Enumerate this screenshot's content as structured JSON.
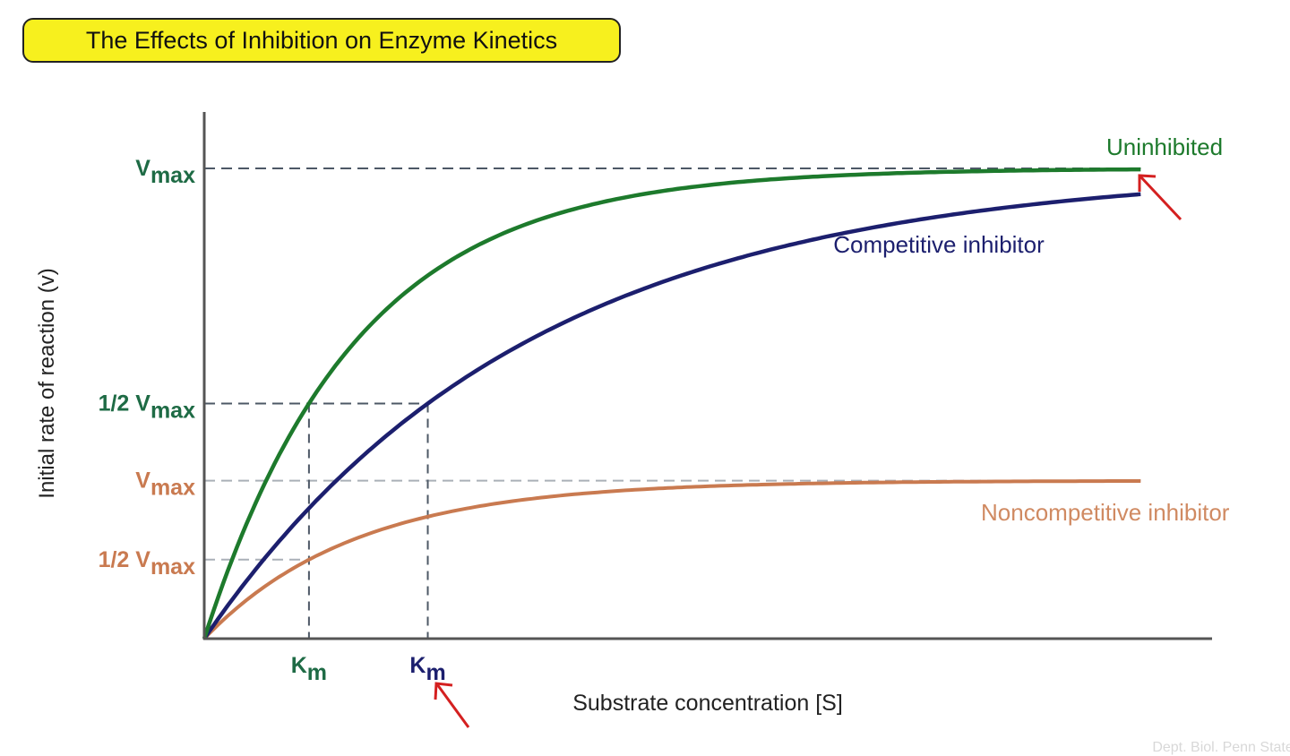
{
  "chart_data": {
    "type": "line",
    "title": "The Effects of Inhibition on Enzyme Kinetics",
    "xlabel": "Substrate concentration [S]",
    "ylabel": "Initial rate of reaction (v)",
    "xlim": [
      0,
      100
    ],
    "ylim": [
      0,
      112
    ],
    "grid": false,
    "series": [
      {
        "name": "Uninhibited",
        "vmax": 100,
        "km": 10.4,
        "color": "#1d7a2c"
      },
      {
        "name": "Competitive inhibitor",
        "vmax": 100,
        "km": 22.2,
        "color": "#1c1f6e"
      },
      {
        "name": "Noncompetitive inhibitor",
        "vmax": 33.6,
        "km": 10.4,
        "color": "#c97a50"
      }
    ],
    "x_end": 93,
    "y_labels": [
      {
        "main": "V",
        "sub": "max",
        "value": 100,
        "color": "#1e6b45"
      },
      {
        "main": "1/2 V",
        "sub": "max",
        "value": 50,
        "color": "#1e6b45"
      },
      {
        "main": "V",
        "sub": "max",
        "value": 33.6,
        "color": "#c97a50"
      },
      {
        "main": "1/2 V",
        "sub": "max",
        "value": 16.8,
        "color": "#c97a50"
      }
    ],
    "x_labels": [
      {
        "main": "K",
        "sub": "m",
        "value": 10.4,
        "color": "#1e6b45"
      },
      {
        "main": "K",
        "sub": "m",
        "value": 22.2,
        "color": "#1c1f6e"
      }
    ],
    "annotations": [
      "red arrow pointing to Vmax of uninhibited and competitive curves",
      "red arrow pointing to competitive Km"
    ]
  },
  "watermark": "Dept. Biol. Penn State ©"
}
